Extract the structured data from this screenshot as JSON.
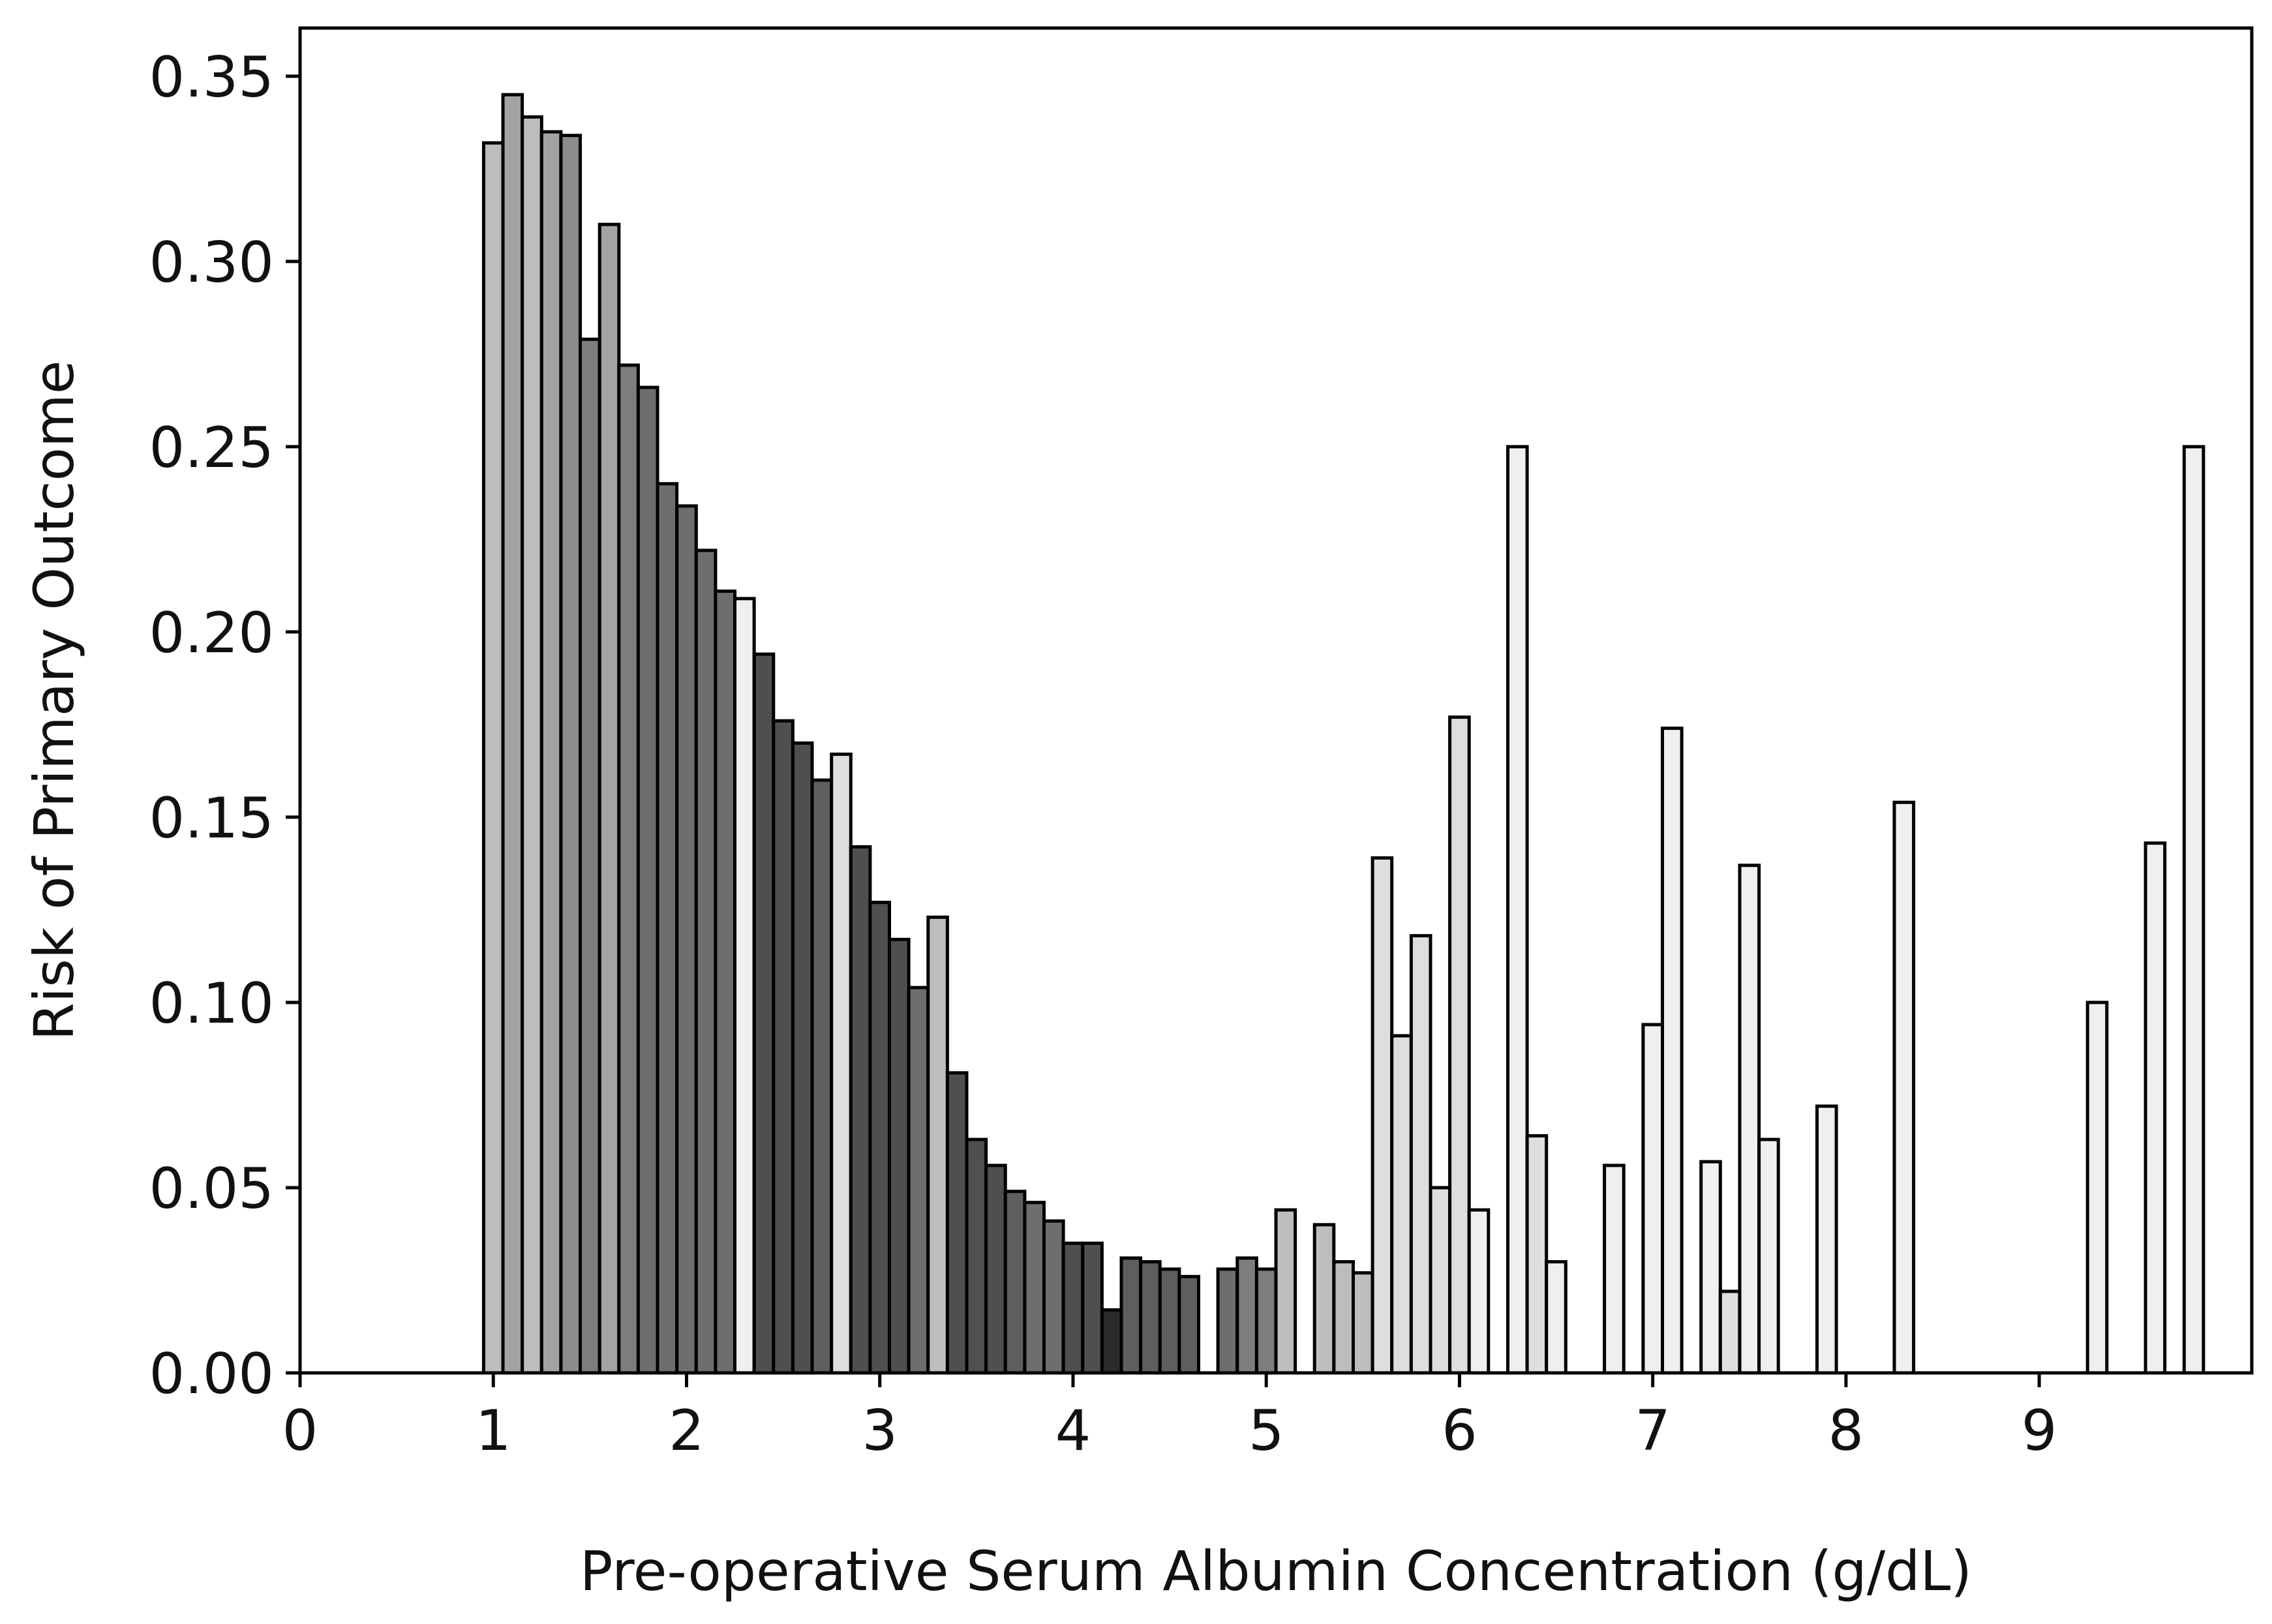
{
  "chart_data": {
    "type": "bar",
    "xlabel": "Pre-operative Serum Albumin Concentration (g/dL)",
    "ylabel": "Risk of Primary Outcome",
    "xlim": [
      0,
      10.1
    ],
    "ylim": [
      0,
      0.363
    ],
    "xticks": [
      "0",
      "1",
      "2",
      "3",
      "4",
      "5",
      "6",
      "7",
      "8",
      "9"
    ],
    "yticks": [
      "0.00",
      "0.05",
      "0.10",
      "0.15",
      "0.20",
      "0.25",
      "0.30",
      "0.35"
    ],
    "bin_width": 0.1,
    "grid": false,
    "legend": "none",
    "fill_scale": {
      "lightest": "#efefef",
      "darkest": "#2a2a2a"
    },
    "edge_color": "#000000",
    "bars": [
      {
        "x": 1.0,
        "value": 0.332,
        "fill": "#bdbdbd"
      },
      {
        "x": 1.1,
        "value": 0.345,
        "fill": "#a3a3a3"
      },
      {
        "x": 1.2,
        "value": 0.339,
        "fill": "#bdbdbd"
      },
      {
        "x": 1.3,
        "value": 0.335,
        "fill": "#a3a3a3"
      },
      {
        "x": 1.4,
        "value": 0.334,
        "fill": "#8c8c8c"
      },
      {
        "x": 1.5,
        "value": 0.279,
        "fill": "#7d7d7d"
      },
      {
        "x": 1.6,
        "value": 0.31,
        "fill": "#a3a3a3"
      },
      {
        "x": 1.7,
        "value": 0.272,
        "fill": "#7d7d7d"
      },
      {
        "x": 1.8,
        "value": 0.266,
        "fill": "#6e6e6e"
      },
      {
        "x": 1.9,
        "value": 0.24,
        "fill": "#6e6e6e"
      },
      {
        "x": 2.0,
        "value": 0.234,
        "fill": "#6e6e6e"
      },
      {
        "x": 2.1,
        "value": 0.222,
        "fill": "#6e6e6e"
      },
      {
        "x": 2.2,
        "value": 0.211,
        "fill": "#6e6e6e"
      },
      {
        "x": 2.3,
        "value": 0.209,
        "fill": "#efefef"
      },
      {
        "x": 2.4,
        "value": 0.194,
        "fill": "#4f4f4f"
      },
      {
        "x": 2.5,
        "value": 0.176,
        "fill": "#4f4f4f"
      },
      {
        "x": 2.6,
        "value": 0.17,
        "fill": "#4f4f4f"
      },
      {
        "x": 2.7,
        "value": 0.16,
        "fill": "#5e5e5e"
      },
      {
        "x": 2.8,
        "value": 0.167,
        "fill": "#dedede"
      },
      {
        "x": 2.9,
        "value": 0.142,
        "fill": "#4f4f4f"
      },
      {
        "x": 3.0,
        "value": 0.127,
        "fill": "#4f4f4f"
      },
      {
        "x": 3.1,
        "value": 0.117,
        "fill": "#4f4f4f"
      },
      {
        "x": 3.2,
        "value": 0.104,
        "fill": "#6e6e6e"
      },
      {
        "x": 3.3,
        "value": 0.123,
        "fill": "#bdbdbd"
      },
      {
        "x": 3.4,
        "value": 0.081,
        "fill": "#4f4f4f"
      },
      {
        "x": 3.5,
        "value": 0.063,
        "fill": "#4f4f4f"
      },
      {
        "x": 3.6,
        "value": 0.056,
        "fill": "#4f4f4f"
      },
      {
        "x": 3.7,
        "value": 0.049,
        "fill": "#5e5e5e"
      },
      {
        "x": 3.8,
        "value": 0.046,
        "fill": "#6e6e6e"
      },
      {
        "x": 3.9,
        "value": 0.041,
        "fill": "#6e6e6e"
      },
      {
        "x": 4.0,
        "value": 0.035,
        "fill": "#4f4f4f"
      },
      {
        "x": 4.1,
        "value": 0.035,
        "fill": "#4f4f4f"
      },
      {
        "x": 4.2,
        "value": 0.017,
        "fill": "#2a2a2a"
      },
      {
        "x": 4.3,
        "value": 0.031,
        "fill": "#5e5e5e"
      },
      {
        "x": 4.4,
        "value": 0.03,
        "fill": "#5e5e5e"
      },
      {
        "x": 4.5,
        "value": 0.028,
        "fill": "#5e5e5e"
      },
      {
        "x": 4.6,
        "value": 0.026,
        "fill": "#5e5e5e"
      },
      {
        "x": 4.8,
        "value": 0.028,
        "fill": "#6e6e6e"
      },
      {
        "x": 4.9,
        "value": 0.031,
        "fill": "#7d7d7d"
      },
      {
        "x": 5.0,
        "value": 0.028,
        "fill": "#7d7d7d"
      },
      {
        "x": 5.1,
        "value": 0.044,
        "fill": "#bdbdbd"
      },
      {
        "x": 5.3,
        "value": 0.04,
        "fill": "#bdbdbd"
      },
      {
        "x": 5.4,
        "value": 0.03,
        "fill": "#bdbdbd"
      },
      {
        "x": 5.5,
        "value": 0.027,
        "fill": "#bdbdbd"
      },
      {
        "x": 5.6,
        "value": 0.139,
        "fill": "#dedede"
      },
      {
        "x": 5.7,
        "value": 0.091,
        "fill": "#dedede"
      },
      {
        "x": 5.8,
        "value": 0.118,
        "fill": "#dedede"
      },
      {
        "x": 5.9,
        "value": 0.05,
        "fill": "#dedede"
      },
      {
        "x": 6.0,
        "value": 0.177,
        "fill": "#dedede"
      },
      {
        "x": 6.1,
        "value": 0.044,
        "fill": "#efefef"
      },
      {
        "x": 6.3,
        "value": 0.25,
        "fill": "#efefef"
      },
      {
        "x": 6.4,
        "value": 0.064,
        "fill": "#dedede"
      },
      {
        "x": 6.5,
        "value": 0.03,
        "fill": "#efefef"
      },
      {
        "x": 6.6,
        "value": 0.0,
        "fill": "#efefef"
      },
      {
        "x": 6.8,
        "value": 0.056,
        "fill": "#efefef"
      },
      {
        "x": 7.0,
        "value": 0.094,
        "fill": "#efefef"
      },
      {
        "x": 7.1,
        "value": 0.174,
        "fill": "#efefef"
      },
      {
        "x": 7.3,
        "value": 0.057,
        "fill": "#efefef"
      },
      {
        "x": 7.4,
        "value": 0.022,
        "fill": "#dedede"
      },
      {
        "x": 7.5,
        "value": 0.137,
        "fill": "#efefef"
      },
      {
        "x": 7.6,
        "value": 0.063,
        "fill": "#efefef"
      },
      {
        "x": 7.8,
        "value": 0.0,
        "fill": "#efefef"
      },
      {
        "x": 7.9,
        "value": 0.072,
        "fill": "#efefef"
      },
      {
        "x": 8.0,
        "value": 0.0,
        "fill": "#efefef"
      },
      {
        "x": 8.1,
        "value": 0.0,
        "fill": "#efefef"
      },
      {
        "x": 8.3,
        "value": 0.154,
        "fill": "#efefef"
      },
      {
        "x": 8.4,
        "value": 0.0,
        "fill": "#efefef"
      },
      {
        "x": 8.6,
        "value": 0.0,
        "fill": "#efefef"
      },
      {
        "x": 8.8,
        "value": 0.0,
        "fill": "#efefef"
      },
      {
        "x": 8.9,
        "value": 0.0,
        "fill": "#efefef"
      },
      {
        "x": 9.1,
        "value": 0.0,
        "fill": "#efefef"
      },
      {
        "x": 9.2,
        "value": 0.0,
        "fill": "#efefef"
      },
      {
        "x": 9.3,
        "value": 0.1,
        "fill": "#efefef"
      },
      {
        "x": 9.6,
        "value": 0.143,
        "fill": "#efefef"
      },
      {
        "x": 9.8,
        "value": 0.25,
        "fill": "#efefef"
      }
    ]
  }
}
